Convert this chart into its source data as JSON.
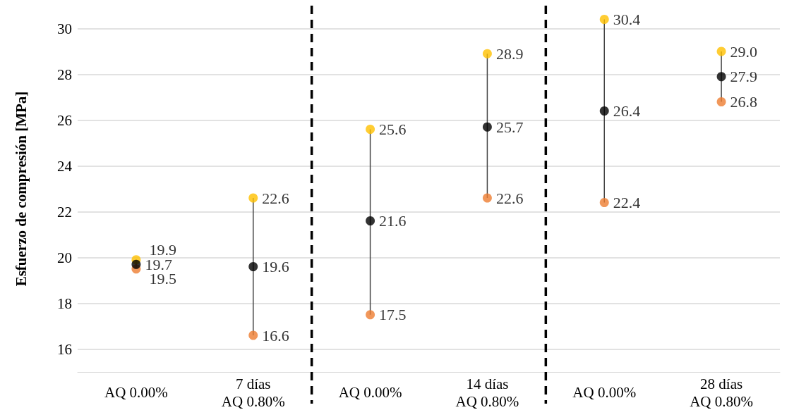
{
  "chart_data": {
    "type": "scatter",
    "ylabel": "Esfuerzo de compresión [MPa]",
    "categories": [
      "AQ 0.00%",
      "7 días\nAQ 0.80%",
      "AQ 0.00%",
      "14 días\nAQ 0.80%",
      "AQ 0.00%",
      "28 días\nAQ 0.80%"
    ],
    "series": [
      {
        "color": "#ffc000",
        "values": [
          19.9,
          22.6,
          25.6,
          28.9,
          30.4,
          29.0
        ],
        "value_labels": [
          "19.9",
          "22.6",
          "25.6",
          "28.9",
          "30.4",
          "29.0"
        ]
      },
      {
        "color": "#ed7d31",
        "values": [
          19.5,
          16.6,
          17.5,
          22.6,
          22.4,
          26.8
        ],
        "value_labels": [
          "19.5",
          "16.6",
          "17.5",
          "22.6",
          "22.4",
          "26.8"
        ]
      },
      {
        "color": "#000000",
        "values": [
          19.7,
          19.6,
          21.6,
          25.7,
          26.4,
          27.9
        ],
        "value_labels": [
          "19.7",
          "19.6",
          "21.6",
          "25.7",
          "26.4",
          "27.9"
        ]
      }
    ],
    "ylim": [
      15,
      31
    ],
    "yticks": [
      16,
      18,
      20,
      22,
      24,
      26,
      28,
      30
    ],
    "grid": "y",
    "marker": "circle"
  }
}
